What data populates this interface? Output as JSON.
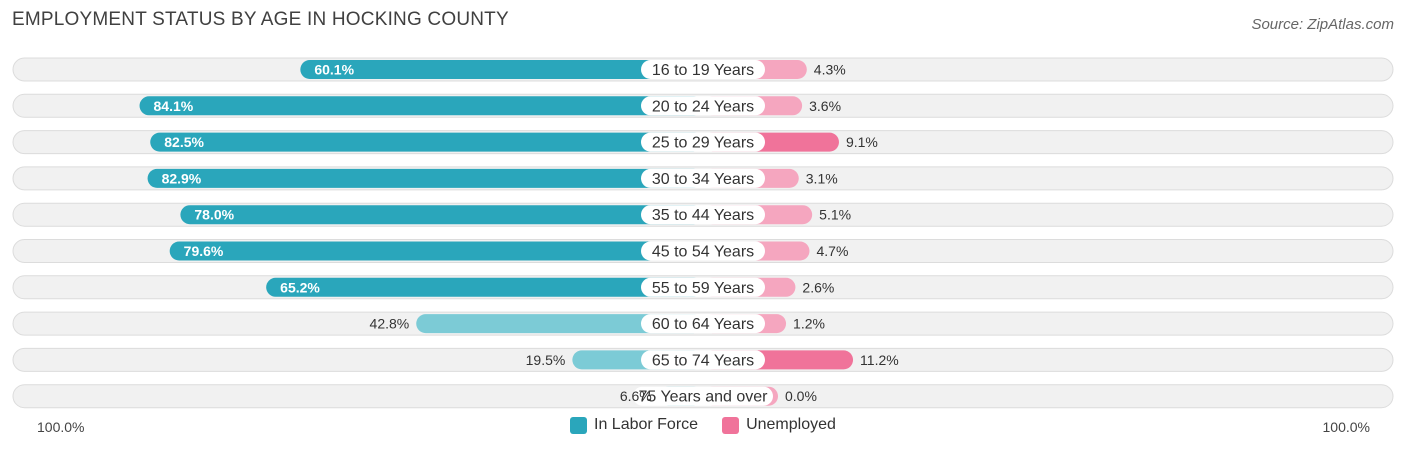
{
  "chart_data": {
    "type": "bar",
    "title": "EMPLOYMENT STATUS BY AGE IN HOCKING COUNTY",
    "source": "Source: ZipAtlas.com",
    "categories": [
      "16 to 19 Years",
      "20 to 24 Years",
      "25 to 29 Years",
      "30 to 34 Years",
      "35 to 44 Years",
      "45 to 54 Years",
      "55 to 59 Years",
      "60 to 64 Years",
      "65 to 74 Years",
      "75 Years and over"
    ],
    "series": [
      {
        "name": "In Labor Force",
        "values": [
          60.1,
          84.1,
          82.5,
          82.9,
          78.0,
          79.6,
          65.2,
          42.8,
          19.5,
          6.6
        ],
        "labels": [
          "60.1%",
          "84.1%",
          "82.5%",
          "82.9%",
          "78.0%",
          "79.6%",
          "65.2%",
          "42.8%",
          "19.5%",
          "6.6%"
        ]
      },
      {
        "name": "Unemployed",
        "values": [
          4.3,
          3.6,
          9.1,
          3.1,
          5.1,
          4.7,
          2.6,
          1.2,
          11.2,
          0.0
        ],
        "labels": [
          "4.3%",
          "3.6%",
          "9.1%",
          "3.1%",
          "5.1%",
          "4.7%",
          "2.6%",
          "1.2%",
          "11.2%",
          "0.0%"
        ]
      }
    ],
    "axis_left_label": "100.0%",
    "axis_right_label": "100.0%",
    "xlim": [
      -100,
      100
    ],
    "legend_position": "bottom-center"
  },
  "colors": {
    "labor_dark": "#2aa6bb",
    "labor_light": "#7ccbd6",
    "unemp_dark": "#f0739a",
    "unemp_light": "#f5a6bf"
  }
}
